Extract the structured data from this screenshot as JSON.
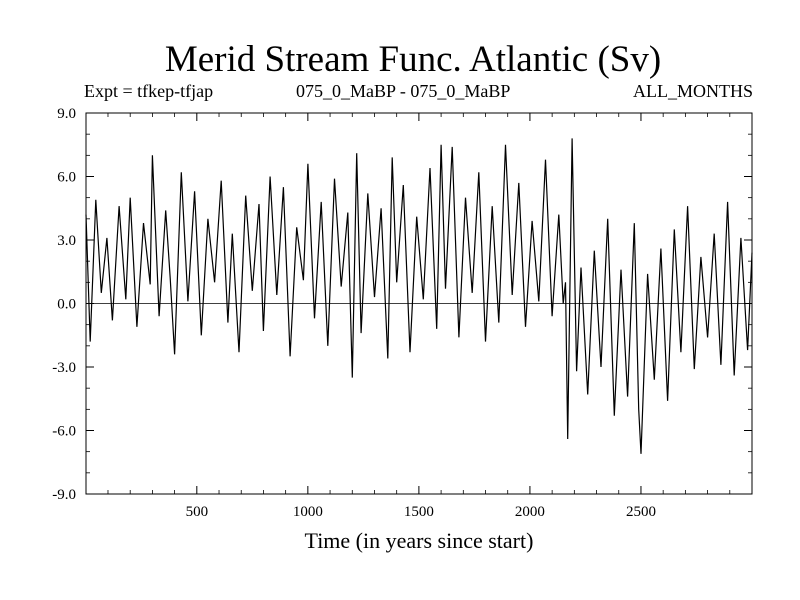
{
  "chart_data": {
    "type": "line",
    "title": "Merid Stream Func. Atlantic (Sv)",
    "subtitle_left": "Expt = tfkep-tfjap",
    "subtitle_center": "075_0_MaBP - 075_0_MaBP",
    "subtitle_right": "ALL_MONTHS",
    "xlabel": "Time (in years since start)",
    "ylabel": "",
    "xlim": [
      1,
      3000
    ],
    "ylim": [
      -9.0,
      9.0
    ],
    "x_ticks": [
      500,
      1000,
      1500,
      2000,
      2500
    ],
    "x_tick_labels": [
      "500",
      "1000",
      "1500",
      "2000",
      "2500"
    ],
    "y_ticks": [
      -9.0,
      -6.0,
      -3.0,
      0.0,
      3.0,
      6.0,
      9.0
    ],
    "y_tick_labels": [
      "-9.0",
      "-6.0",
      "-3.0",
      "0.0",
      "3.0",
      "6.0",
      "9.0"
    ],
    "zero_line": true,
    "grid": false,
    "series": [
      {
        "color": "#000000",
        "x": [
          1,
          20,
          45,
          70,
          95,
          120,
          150,
          180,
          200,
          230,
          260,
          290,
          300,
          330,
          360,
          380,
          400,
          430,
          460,
          490,
          520,
          550,
          580,
          610,
          640,
          660,
          690,
          720,
          750,
          780,
          800,
          830,
          860,
          890,
          920,
          950,
          980,
          1000,
          1030,
          1060,
          1090,
          1120,
          1150,
          1180,
          1200,
          1220,
          1240,
          1270,
          1300,
          1330,
          1360,
          1380,
          1400,
          1430,
          1460,
          1490,
          1520,
          1550,
          1580,
          1600,
          1620,
          1650,
          1680,
          1710,
          1740,
          1770,
          1800,
          1830,
          1860,
          1890,
          1920,
          1950,
          1980,
          2010,
          2040,
          2070,
          2100,
          2130,
          2150,
          2160,
          2170,
          2190,
          2210,
          2230,
          2260,
          2290,
          2320,
          2350,
          2380,
          2410,
          2440,
          2470,
          2490,
          2500,
          2530,
          2560,
          2590,
          2620,
          2650,
          2680,
          2710,
          2740,
          2770,
          2800,
          2830,
          2860,
          2890,
          2920,
          2950,
          2980,
          3000
        ],
        "y": [
          4.2,
          -1.8,
          4.9,
          0.5,
          3.1,
          -0.8,
          4.6,
          0.2,
          5.0,
          -1.1,
          3.8,
          0.9,
          7.0,
          -0.6,
          4.4,
          1.2,
          -2.4,
          6.2,
          0.1,
          5.3,
          -1.5,
          4.0,
          1.0,
          5.8,
          -0.9,
          3.3,
          -2.3,
          5.1,
          0.6,
          4.7,
          -1.3,
          6.0,
          0.4,
          5.5,
          -2.5,
          3.6,
          1.1,
          6.6,
          -0.7,
          4.8,
          -2.0,
          5.9,
          0.8,
          4.3,
          -3.5,
          7.1,
          -1.4,
          5.2,
          0.3,
          4.5,
          -2.6,
          6.9,
          1.0,
          5.6,
          -2.3,
          4.1,
          0.2,
          6.4,
          -1.2,
          7.5,
          0.7,
          7.4,
          -1.6,
          5.0,
          0.5,
          6.2,
          -1.8,
          4.6,
          -0.9,
          7.5,
          0.4,
          5.7,
          -1.1,
          3.9,
          0.1,
          6.8,
          -0.6,
          4.2,
          0.0,
          1.0,
          -6.4,
          7.8,
          -3.2,
          1.7,
          -4.3,
          2.5,
          -3.0,
          4.0,
          -5.3,
          1.6,
          -4.4,
          3.8,
          -5.0,
          -7.1,
          1.4,
          -3.6,
          2.6,
          -4.6,
          3.5,
          -2.3,
          4.6,
          -3.1,
          2.2,
          -1.6,
          3.3,
          -2.9,
          4.8,
          -3.4,
          3.1,
          -2.2,
          2.4
        ]
      }
    ]
  }
}
